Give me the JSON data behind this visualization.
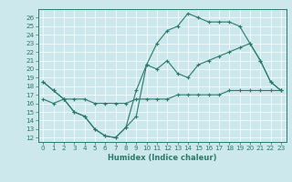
{
  "xlabel": "Humidex (Indice chaleur)",
  "bg_color": "#cce8ec",
  "line_color": "#2a7a6a",
  "xlim": [
    -0.5,
    23.5
  ],
  "ylim": [
    11.5,
    27.0
  ],
  "yticks": [
    12,
    13,
    14,
    15,
    16,
    17,
    18,
    19,
    20,
    21,
    22,
    23,
    24,
    25,
    26
  ],
  "xticks": [
    0,
    1,
    2,
    3,
    4,
    5,
    6,
    7,
    8,
    9,
    10,
    11,
    12,
    13,
    14,
    15,
    16,
    17,
    18,
    19,
    20,
    21,
    22,
    23
  ],
  "line1_x": [
    0,
    1,
    2,
    3,
    4,
    5,
    6,
    7,
    8,
    9,
    10,
    11,
    12,
    13,
    14,
    15,
    16,
    17,
    18,
    19,
    20,
    21,
    22,
    23
  ],
  "line1_y": [
    18.5,
    17.5,
    16.5,
    15.0,
    14.5,
    13.0,
    12.2,
    12.0,
    13.2,
    14.5,
    20.5,
    23.0,
    24.5,
    25.0,
    26.5,
    26.0,
    25.5,
    25.5,
    25.5,
    25.0,
    23.0,
    21.0,
    18.5,
    17.5
  ],
  "line2_x": [
    0,
    1,
    2,
    3,
    4,
    5,
    6,
    7,
    8,
    9,
    10,
    11,
    12,
    13,
    14,
    15,
    16,
    17,
    18,
    19,
    20,
    21,
    22,
    23
  ],
  "line2_y": [
    18.5,
    17.5,
    16.5,
    15.0,
    14.5,
    13.0,
    12.2,
    12.0,
    13.2,
    17.5,
    20.5,
    20.0,
    21.0,
    19.5,
    19.0,
    20.5,
    21.0,
    21.5,
    22.0,
    22.5,
    23.0,
    21.0,
    18.5,
    17.5
  ],
  "line3_x": [
    0,
    1,
    2,
    3,
    4,
    5,
    6,
    7,
    8,
    9,
    10,
    11,
    12,
    13,
    14,
    15,
    16,
    17,
    18,
    19,
    20,
    21,
    22,
    23
  ],
  "line3_y": [
    16.5,
    16.0,
    16.5,
    16.5,
    16.5,
    16.0,
    16.0,
    16.0,
    16.0,
    16.5,
    16.5,
    16.5,
    16.5,
    17.0,
    17.0,
    17.0,
    17.0,
    17.0,
    17.5,
    17.5,
    17.5,
    17.5,
    17.5,
    17.5
  ],
  "grid_color": "#ffffff",
  "tick_fontsize": 5.2,
  "xlabel_fontsize": 6.0
}
